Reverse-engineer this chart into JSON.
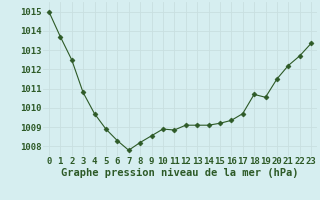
{
  "x": [
    0,
    1,
    2,
    3,
    4,
    5,
    6,
    7,
    8,
    9,
    10,
    11,
    12,
    13,
    14,
    15,
    16,
    17,
    18,
    19,
    20,
    21,
    22,
    23
  ],
  "y": [
    1015.0,
    1013.7,
    1012.5,
    1010.8,
    1009.7,
    1008.9,
    1008.3,
    1007.8,
    1008.2,
    1008.55,
    1008.9,
    1008.85,
    1009.1,
    1009.1,
    1009.1,
    1009.2,
    1009.35,
    1009.7,
    1010.7,
    1010.55,
    1011.5,
    1012.2,
    1012.7,
    1013.35
  ],
  "ylim": [
    1007.5,
    1015.5
  ],
  "yticks": [
    1008,
    1009,
    1010,
    1011,
    1012,
    1013,
    1014,
    1015
  ],
  "xlabel": "Graphe pression niveau de la mer (hPa)",
  "line_color": "#2d5a27",
  "marker": "D",
  "marker_size": 2.5,
  "background_color": "#d6eef0",
  "grid_color": "#c8dfe0",
  "tick_label_color": "#2d5a27",
  "xlabel_color": "#2d5a27",
  "xlabel_fontsize": 7.5,
  "tick_fontsize": 6.5
}
